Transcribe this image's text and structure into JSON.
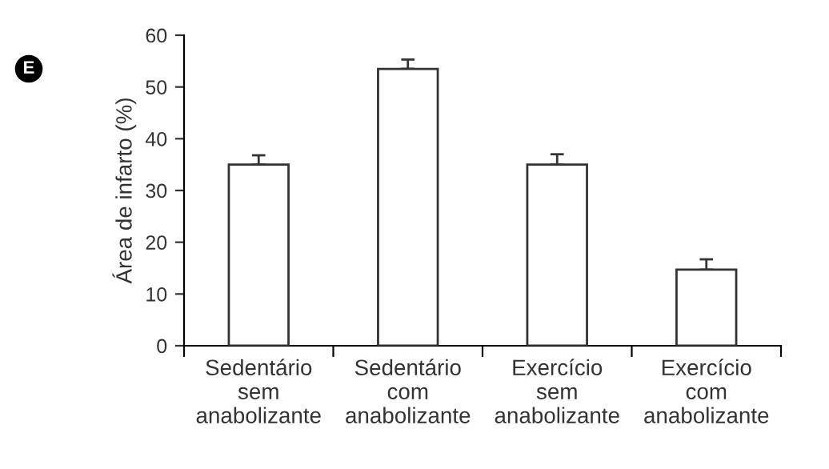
{
  "chart_data": {
    "type": "bar",
    "ylabel": "Área de infarto (%)",
    "categories": [
      "Sedentário\nsem\nanabolizante",
      "Sedentário\ncom\nanabolizante",
      "Exercício\nsem\nanabolizante",
      "Exercício\ncom\nanabolizante"
    ],
    "values": [
      35,
      53.5,
      35,
      14.7
    ],
    "errors": [
      1.8,
      1.8,
      2,
      2
    ],
    "color": "#ffffff",
    "ylim": [
      0,
      60
    ],
    "yticks": [
      0,
      10,
      20,
      30,
      40,
      50,
      60
    ],
    "grid": false,
    "legend": false,
    "annotations": [
      "E"
    ]
  }
}
